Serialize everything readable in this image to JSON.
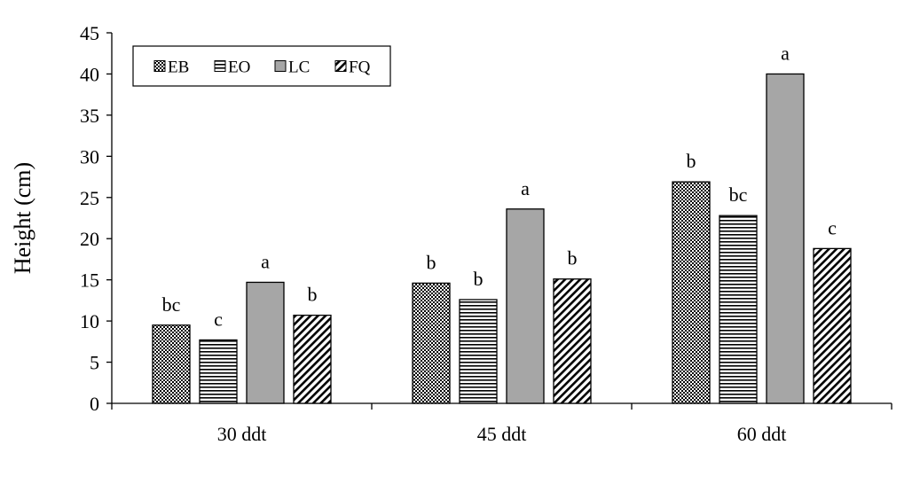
{
  "chart_data": {
    "type": "bar",
    "title": "",
    "xlabel": "",
    "ylabel": "Height (cm)",
    "ylim": [
      0,
      45
    ],
    "yticks": [
      0,
      5,
      10,
      15,
      20,
      25,
      30,
      35,
      40,
      45
    ],
    "grid": false,
    "legend_position": "top-left",
    "categories": [
      "30 ddt",
      "45 ddt",
      "60 ddt"
    ],
    "series": [
      {
        "name": "EB",
        "pattern": "dots",
        "values": [
          9.5,
          14.6,
          26.9
        ],
        "labels": [
          "bc",
          "b",
          "b"
        ]
      },
      {
        "name": "EO",
        "pattern": "horizontal",
        "values": [
          7.7,
          12.6,
          22.8
        ],
        "labels": [
          "c",
          "b",
          "bc"
        ]
      },
      {
        "name": "LC",
        "pattern": "solid",
        "values": [
          14.7,
          23.6,
          40.0
        ],
        "labels": [
          "a",
          "a",
          "a"
        ]
      },
      {
        "name": "FQ",
        "pattern": "diagonal",
        "values": [
          10.7,
          15.1,
          18.8
        ],
        "labels": [
          "b",
          "b",
          "c"
        ]
      }
    ],
    "colors": {
      "solid_fill": "#a6a6a6",
      "stroke": "#000000"
    }
  }
}
